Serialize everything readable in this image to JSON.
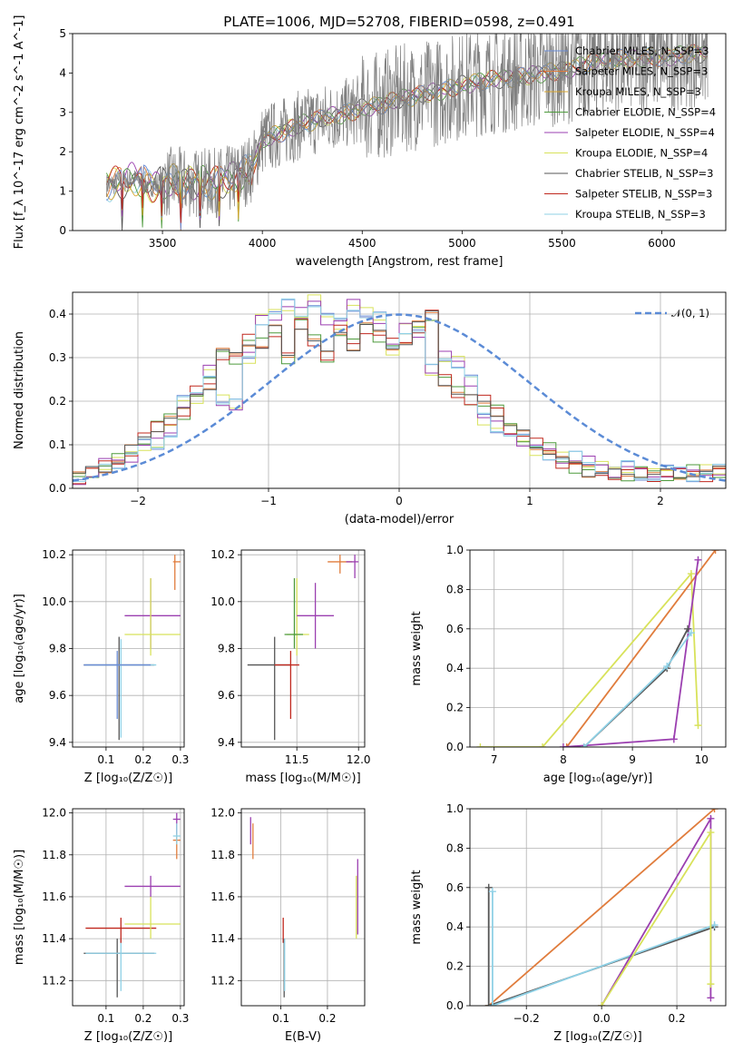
{
  "figure_title": "PLATE=1006, MJD=52708, FIBERID=0598, z=0.491",
  "colors": {
    "chabrier_miles": "#6a8cd6",
    "salpeter_miles": "#e07c3c",
    "kroupa_miles": "#d9a62e",
    "chabrier_elodie": "#4d9a3c",
    "salpeter_elodie": "#9b3fb0",
    "kroupa_elodie": "#d8e25a",
    "chabrier_stelib": "#555555",
    "salpeter_stelib": "#c0281e",
    "kroupa_stelib": "#8fd1e6",
    "data": "#7f7f7f",
    "normal_curve": "#5b8bd6",
    "grid": "#b0b0b0"
  },
  "chart_data": [
    {
      "id": "spectrum",
      "type": "line",
      "title": "PLATE=1006, MJD=52708, FIBERID=0598, z=0.491",
      "xlabel": "wavelength [Angstrom, rest frame]",
      "ylabel": "Flux [f_λ 10^-17 erg cm^-2 s^-1 A^-1]",
      "xlim": [
        3050,
        6320
      ],
      "ylim": [
        0,
        5
      ],
      "xticks": [
        "3500",
        "4000",
        "4500",
        "5000",
        "5500",
        "6000"
      ],
      "yticks": [
        "0",
        "1",
        "2",
        "3",
        "4",
        "5"
      ],
      "grid": false,
      "legend_position": "top-right",
      "legend": [
        "Chabrier MILES, N_SSP=3",
        "Salpeter MILES, N_SSP=3",
        "Kroupa MILES, N_SSP=3",
        "Chabrier ELODIE, N_SSP=4",
        "Salpeter ELODIE, N_SSP=4",
        "Kroupa ELODIE, N_SSP=4",
        "Chabrier STELIB, N_SSP=3",
        "Salpeter STELIB, N_SSP=3",
        "Kroupa STELIB, N_SSP=3"
      ],
      "data_range": [
        3220,
        6230
      ],
      "continuum": {
        "x": [
          3220,
          3350,
          3450,
          3550,
          3650,
          3750,
          3850,
          3950,
          4000,
          4100,
          4200,
          4300,
          4400,
          4500,
          4600,
          4700,
          4800,
          4900,
          5000,
          5100,
          5200,
          5300,
          5400,
          5500,
          5600,
          5700,
          5800,
          5900,
          6000,
          6100,
          6200
        ],
        "y": [
          1.15,
          1.3,
          1.15,
          1.25,
          1.2,
          1.2,
          1.3,
          1.6,
          2.3,
          2.5,
          2.7,
          2.85,
          2.95,
          3.1,
          3.2,
          3.35,
          3.45,
          3.55,
          3.7,
          3.8,
          3.85,
          3.9,
          4.0,
          4.05,
          4.2,
          4.3,
          4.35,
          4.4,
          4.4,
          4.45,
          4.5
        ]
      }
    },
    {
      "id": "residuals",
      "type": "line",
      "xlabel": "(data-model)/error",
      "ylabel": "Normed distribution",
      "xlim": [
        -2.5,
        2.5
      ],
      "ylim": [
        0,
        0.45
      ],
      "xticks": [
        "−2",
        "−1",
        "0",
        "1",
        "2"
      ],
      "yticks": [
        "0.0",
        "0.1",
        "0.2",
        "0.3",
        "0.4"
      ],
      "grid": true,
      "legend_position": "top-right",
      "legend": [
        "𝒩(0, 1)"
      ],
      "bins": {
        "start": -2.5,
        "width": 0.1
      },
      "hist_values": [
        0.02,
        0.025,
        0.035,
        0.04,
        0.055,
        0.05,
        0.06,
        0.065,
        0.075,
        0.085,
        0.1,
        0.115,
        0.1,
        0.145,
        0.13,
        0.16,
        0.2,
        0.17,
        0.21,
        0.22,
        0.27,
        0.24,
        0.2,
        0.31,
        0.19,
        0.3,
        0.3,
        0.34,
        0.39,
        0.33,
        0.4,
        0.36,
        0.42,
        0.3,
        0.4,
        0.38,
        0.43,
        0.34,
        0.39,
        0.3,
        0.38,
        0.36,
        0.42,
        0.33,
        0.4,
        0.37,
        0.39,
        0.35,
        0.32,
        0.33,
        0.37,
        0.34,
        0.36,
        0.37,
        0.27,
        0.4,
        0.3,
        0.25,
        0.29,
        0.22,
        0.25,
        0.2,
        0.16,
        0.2,
        0.14,
        0.18,
        0.13,
        0.14,
        0.11,
        0.12,
        0.09,
        0.1,
        0.08,
        0.09,
        0.07,
        0.06,
        0.07,
        0.05,
        0.06,
        0.04,
        0.05,
        0.04,
        0.04,
        0.03,
        0.05,
        0.03,
        0.03,
        0.04,
        0.03,
        0.03,
        0.04,
        0.03,
        0.04,
        0.03,
        0.03,
        0.04,
        0.04,
        0.03,
        0.04,
        0.04
      ],
      "normal_pdf": {
        "mean": 0,
        "sigma": 1
      }
    },
    {
      "id": "age-vs-Z",
      "type": "scatter",
      "xlabel": "Z [log₁₀(Z/Z☉)]",
      "ylabel": "age  [log₁₀(age/yr)]",
      "xlim": [
        0.01,
        0.31
      ],
      "ylim": [
        9.38,
        10.22
      ],
      "xticks": [
        "0.1",
        "0.2",
        "0.3"
      ],
      "yticks": [
        "9.4",
        "9.6",
        "9.8",
        "10.0",
        "10.2"
      ],
      "grid": true,
      "points": [
        {
          "series": "Chabrier STELIB",
          "x": 0.135,
          "y": 9.73,
          "xerr": [
            0.04,
            0.23
          ],
          "yerr": [
            9.41,
            9.85
          ]
        },
        {
          "series": "Kroupa STELIB",
          "x": 0.14,
          "y": 9.73,
          "xerr": [
            0.045,
            0.235
          ],
          "yerr": [
            9.42,
            9.84
          ]
        },
        {
          "series": "Chabrier MILES",
          "x": 0.13,
          "y": 9.73,
          "xerr": [
            0.04,
            0.22
          ],
          "yerr": [
            9.5,
            9.79
          ]
        },
        {
          "series": "Salpeter ELODIE",
          "x": 0.22,
          "y": 9.94,
          "xerr": [
            0.15,
            0.3
          ],
          "yerr": [
            9.8,
            10.1
          ]
        },
        {
          "series": "Kroupa ELODIE",
          "x": 0.22,
          "y": 9.86,
          "xerr": [
            0.15,
            0.3
          ],
          "yerr": [
            9.77,
            10.1
          ]
        },
        {
          "series": "Salpeter MILES",
          "x": 0.285,
          "y": 10.17,
          "xerr": [
            0.28,
            0.3
          ],
          "yerr": [
            10.05,
            10.2
          ]
        }
      ]
    },
    {
      "id": "age-vs-mass",
      "type": "scatter",
      "xlabel": "mass [log₁₀(M/M☉)]",
      "ylabel": "",
      "xlim": [
        11.05,
        12.05
      ],
      "ylim": [
        9.38,
        10.22
      ],
      "xticks": [
        "11.5",
        "12.0"
      ],
      "yticks": [
        "9.4",
        "9.6",
        "9.8",
        "10.0",
        "10.2"
      ],
      "grid": true,
      "points": [
        {
          "series": "Chabrier STELIB",
          "x": 11.32,
          "y": 9.73,
          "xerr": [
            11.1,
            11.45
          ],
          "yerr": [
            9.41,
            9.85
          ]
        },
        {
          "series": "Salpeter STELIB",
          "x": 11.45,
          "y": 9.73,
          "xerr": [
            11.32,
            11.52
          ],
          "yerr": [
            9.5,
            9.79
          ]
        },
        {
          "series": "Kroupa ELODIE",
          "x": 11.5,
          "y": 9.86,
          "xerr": [
            11.42,
            11.6
          ],
          "yerr": [
            9.77,
            10.1
          ]
        },
        {
          "series": "Chabrier ELODIE",
          "x": 11.48,
          "y": 9.86,
          "xerr": [
            11.4,
            11.55
          ],
          "yerr": [
            9.8,
            10.1
          ]
        },
        {
          "series": "Salpeter ELODIE",
          "x": 11.65,
          "y": 9.94,
          "xerr": [
            11.5,
            11.8
          ],
          "yerr": [
            9.8,
            10.08
          ]
        },
        {
          "series": "Salpeter MILES",
          "x": 11.85,
          "y": 10.17,
          "xerr": [
            11.75,
            11.95
          ],
          "yerr": [
            10.12,
            10.2
          ]
        },
        {
          "series": "Salpeter ELODIE",
          "x": 11.97,
          "y": 10.17,
          "xerr": [
            11.9,
            12.0
          ],
          "yerr": [
            10.1,
            10.2
          ]
        }
      ]
    },
    {
      "id": "weight-vs-age",
      "type": "line",
      "xlabel": "age  [log₁₀(age/yr)]",
      "ylabel": "mass weight",
      "xlim": [
        6.65,
        10.35
      ],
      "ylim": [
        0,
        1
      ],
      "xticks": [
        "7",
        "8",
        "9",
        "10"
      ],
      "yticks": [
        "0.0",
        "0.2",
        "0.4",
        "0.6",
        "0.8",
        "1.0"
      ],
      "grid": true,
      "series": [
        {
          "name": "Kroupa ELODIE",
          "x": [
            6.8,
            7.7,
            9.85,
            9.95
          ],
          "y": [
            0.0,
            0.0,
            0.88,
            0.11
          ]
        },
        {
          "name": "Salpeter MILES",
          "x": [
            8.05,
            10.2
          ],
          "y": [
            0.0,
            1.0
          ]
        },
        {
          "name": "Salpeter ELODIE",
          "x": [
            8.0,
            9.6,
            9.95
          ],
          "y": [
            0.0,
            0.04,
            0.95
          ]
        },
        {
          "name": "Chabrier STELIB",
          "x": [
            8.3,
            9.5,
            9.8
          ],
          "y": [
            0.0,
            0.4,
            0.6
          ]
        },
        {
          "name": "Kroupa STELIB",
          "x": [
            8.3,
            9.5,
            9.85
          ],
          "y": [
            0.0,
            0.41,
            0.58
          ]
        }
      ]
    },
    {
      "id": "mass-vs-Z",
      "type": "scatter",
      "xlabel": "Z [log₁₀(Z/Z☉)]",
      "ylabel": "mass [log₁₀(M/M☉)]",
      "xlim": [
        0.01,
        0.31
      ],
      "ylim": [
        11.08,
        12.02
      ],
      "xticks": [
        "0.1",
        "0.2",
        "0.3"
      ],
      "yticks": [
        "11.2",
        "11.4",
        "11.6",
        "11.8",
        "12.0"
      ],
      "grid": true,
      "points": [
        {
          "series": "Chabrier STELIB",
          "x": 0.13,
          "y": 11.33,
          "xerr": [
            0.04,
            0.23
          ],
          "yerr": [
            11.12,
            11.4
          ]
        },
        {
          "series": "Kroupa STELIB",
          "x": 0.14,
          "y": 11.33,
          "xerr": [
            0.045,
            0.235
          ],
          "yerr": [
            11.15,
            11.4
          ]
        },
        {
          "series": "Salpeter STELIB",
          "x": 0.14,
          "y": 11.45,
          "xerr": [
            0.045,
            0.235
          ],
          "yerr": [
            11.38,
            11.5
          ]
        },
        {
          "series": "Kroupa ELODIE",
          "x": 0.22,
          "y": 11.47,
          "xerr": [
            0.15,
            0.3
          ],
          "yerr": [
            11.4,
            11.6
          ]
        },
        {
          "series": "Salpeter ELODIE",
          "x": 0.22,
          "y": 11.65,
          "xerr": [
            0.15,
            0.3
          ],
          "yerr": [
            11.6,
            11.7
          ]
        },
        {
          "series": "Salpeter MILES",
          "x": 0.29,
          "y": 11.87,
          "xerr": [
            0.28,
            0.3
          ],
          "yerr": [
            11.78,
            11.95
          ]
        },
        {
          "series": "Salpeter ELODIE",
          "x": 0.29,
          "y": 11.97,
          "xerr": [
            0.28,
            0.3
          ],
          "yerr": [
            11.9,
            12.0
          ]
        },
        {
          "series": "Kroupa STELIB",
          "x": 0.29,
          "y": 11.89,
          "xerr": [
            0.28,
            0.3
          ],
          "yerr": [
            11.85,
            11.95
          ]
        }
      ]
    },
    {
      "id": "mass-vs-EBV",
      "type": "scatter",
      "xlabel": "E(B-V)",
      "ylabel": "",
      "xlim": [
        0.015,
        0.28
      ],
      "ylim": [
        11.08,
        12.02
      ],
      "xticks": [
        "0.1",
        "0.2"
      ],
      "yticks": [
        "11.2",
        "11.4",
        "11.6",
        "11.8",
        "12.0"
      ],
      "grid": true,
      "points": [
        {
          "series": "Salpeter MILES",
          "x": 0.04,
          "y": 11.87,
          "yerr": [
            11.78,
            11.95
          ]
        },
        {
          "series": "Salpeter ELODIE",
          "x": 0.035,
          "y": 11.92,
          "yerr": [
            11.85,
            11.98
          ]
        },
        {
          "series": "Salpeter STELIB",
          "x": 0.105,
          "y": 11.45,
          "yerr": [
            11.38,
            11.5
          ]
        },
        {
          "series": "Chabrier STELIB",
          "x": 0.107,
          "y": 11.33,
          "yerr": [
            11.12,
            11.4
          ]
        },
        {
          "series": "Kroupa STELIB",
          "x": 0.108,
          "y": 11.33,
          "yerr": [
            11.15,
            11.4
          ]
        },
        {
          "series": "Kroupa ELODIE",
          "x": 0.262,
          "y": 11.52,
          "yerr": [
            11.4,
            11.7
          ]
        },
        {
          "series": "Salpeter ELODIE",
          "x": 0.265,
          "y": 11.6,
          "yerr": [
            11.42,
            11.78
          ]
        }
      ]
    },
    {
      "id": "weight-vs-Z",
      "type": "line",
      "xlabel": "Z [log₁₀(Z/Z☉)]",
      "ylabel": "mass weight",
      "xlim": [
        -0.35,
        0.33
      ],
      "ylim": [
        0,
        1
      ],
      "xticks": [
        "−0.2",
        "0.0",
        "0.2"
      ],
      "yticks": [
        "0.0",
        "0.2",
        "0.4",
        "0.6",
        "0.8",
        "1.0"
      ],
      "grid": true,
      "series": [
        {
          "name": "Salpeter MILES",
          "x": [
            -0.3,
            0.3
          ],
          "y": [
            0.0,
            1.0
          ]
        },
        {
          "name": "Chabrier STELIB",
          "x": [
            -0.3,
            -0.3,
            0.3
          ],
          "y": [
            0.6,
            0.0,
            0.4
          ]
        },
        {
          "name": "Kroupa STELIB",
          "x": [
            -0.29,
            -0.29,
            0.3
          ],
          "y": [
            0.58,
            0.0,
            0.41
          ]
        },
        {
          "name": "Salpeter ELODIE",
          "x": [
            0.0,
            0.29,
            0.29
          ],
          "y": [
            0.0,
            0.95,
            0.04
          ]
        },
        {
          "name": "Kroupa ELODIE",
          "x": [
            0.0,
            0.29,
            0.29
          ],
          "y": [
            0.0,
            0.88,
            0.11
          ]
        }
      ]
    }
  ]
}
